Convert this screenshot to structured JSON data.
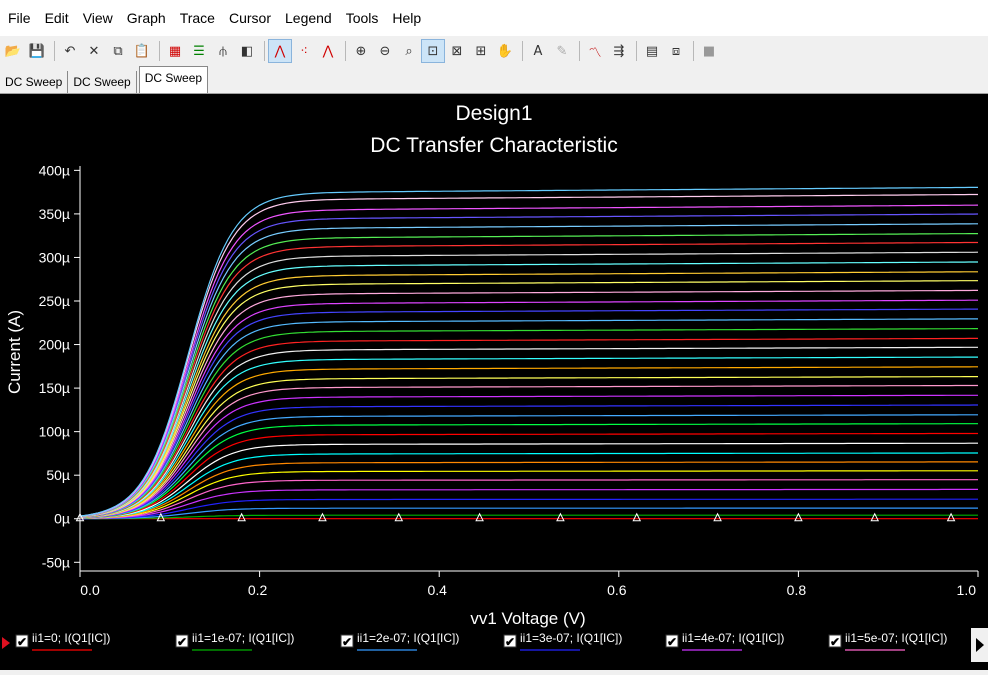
{
  "menu": [
    "File",
    "Edit",
    "View",
    "Graph",
    "Trace",
    "Cursor",
    "Legend",
    "Tools",
    "Help"
  ],
  "toolbar": {
    "icons": [
      {
        "name": "open-icon",
        "glyph": "📂"
      },
      {
        "name": "save-icon",
        "glyph": "💾"
      },
      {
        "sep": true
      },
      {
        "name": "undo-icon",
        "glyph": "↶"
      },
      {
        "name": "cut-icon",
        "glyph": "✕"
      },
      {
        "name": "copy-icon",
        "glyph": "⧉"
      },
      {
        "name": "paste-icon",
        "glyph": "📋"
      },
      {
        "sep": true
      },
      {
        "name": "grid-icon",
        "glyph": "▦",
        "color": "#d00000"
      },
      {
        "name": "legend-icon",
        "glyph": "☰",
        "color": "#008000"
      },
      {
        "name": "cursor-icon",
        "glyph": "⫛"
      },
      {
        "name": "overlay-icon",
        "glyph": "◧"
      },
      {
        "sep": true
      },
      {
        "name": "trace-line-icon",
        "glyph": "⋀",
        "color": "#d00000",
        "selected": true
      },
      {
        "name": "trace-points-icon",
        "glyph": "⁖",
        "color": "#d00000"
      },
      {
        "name": "trace-line-points-icon",
        "glyph": "⋀",
        "color": "#d00000"
      },
      {
        "sep": true
      },
      {
        "name": "zoom-in-icon",
        "glyph": "⊕"
      },
      {
        "name": "zoom-out-icon",
        "glyph": "⊖"
      },
      {
        "name": "zoom-area-icon",
        "glyph": "⌕"
      },
      {
        "name": "zoom-fit-icon",
        "glyph": "⊡",
        "selected": true
      },
      {
        "name": "zoom-x-icon",
        "glyph": "⊠"
      },
      {
        "name": "zoom-y-icon",
        "glyph": "⊞"
      },
      {
        "name": "pan-icon",
        "glyph": "✋"
      },
      {
        "sep": true
      },
      {
        "name": "text-icon",
        "glyph": "A"
      },
      {
        "name": "label-icon",
        "glyph": "✎",
        "color": "#aaaaaa"
      },
      {
        "sep": true
      },
      {
        "name": "trace-measure-icon",
        "glyph": "〽",
        "color": "#c00000"
      },
      {
        "name": "export-icon",
        "glyph": "⇶"
      },
      {
        "sep": true
      },
      {
        "name": "table-icon",
        "glyph": "▤"
      },
      {
        "name": "data-export-icon",
        "glyph": "⧈"
      },
      {
        "sep": true
      },
      {
        "name": "stop-icon",
        "glyph": "■",
        "color": "#999999"
      }
    ]
  },
  "tabs": [
    {
      "label": "DC Sweep",
      "active": false
    },
    {
      "label": "DC Sweep",
      "active": false
    },
    {
      "label": "DC Sweep",
      "active": true
    }
  ],
  "chart_data": {
    "type": "line",
    "title": "Design1",
    "subtitle": "DC Transfer Characteristic",
    "xlabel": "vv1 Voltage (V)",
    "ylabel": "Current (A)",
    "xlim": [
      0,
      1.0
    ],
    "ylim": [
      -60,
      405
    ],
    "x_ticks": [
      "0.0",
      "0.2",
      "0.4",
      "0.6",
      "0.8",
      "1.0"
    ],
    "y_ticks": [
      {
        "value": 400,
        "label": "400µ"
      },
      {
        "value": 350,
        "label": "350µ"
      },
      {
        "value": 300,
        "label": "300µ"
      },
      {
        "value": 250,
        "label": "250µ"
      },
      {
        "value": 200,
        "label": "200µ"
      },
      {
        "value": 150,
        "label": "150µ"
      },
      {
        "value": 100,
        "label": "100µ"
      },
      {
        "value": 50,
        "label": "50µ"
      },
      {
        "value": 0,
        "label": "0µ"
      },
      {
        "value": -50,
        "label": "-50µ"
      }
    ],
    "y_unit_scale": "µA",
    "curve_model": {
      "knee_v": 0.2,
      "shape": "logistic",
      "slope_fraction": 0.02
    },
    "marker_x": [
      0.0,
      0.09,
      0.18,
      0.27,
      0.355,
      0.445,
      0.535,
      0.62,
      0.71,
      0.8,
      0.885,
      0.97
    ],
    "series": [
      {
        "name": "ii1=0; I(Q1[IC])",
        "saturation": 0,
        "color": "#ff0000"
      },
      {
        "name": "ii1=1e-07; I(Q1[IC])",
        "saturation": 4,
        "color": "#00b000"
      },
      {
        "name": "ii1=2e-07; I(Q1[IC])",
        "saturation": 12,
        "color": "#3399ff"
      },
      {
        "name": "ii1=3e-07; I(Q1[IC])",
        "saturation": 22,
        "color": "#2222ff"
      },
      {
        "name": "ii1=4e-07; I(Q1[IC])",
        "saturation": 33,
        "color": "#cc33ff"
      },
      {
        "name": "ii1=5e-07; I(Q1[IC])",
        "saturation": 44,
        "color": "#ff66cc"
      },
      {
        "saturation": 54,
        "color": "#ffff00"
      },
      {
        "saturation": 64,
        "color": "#ff8800"
      },
      {
        "saturation": 74,
        "color": "#00ffff"
      },
      {
        "saturation": 85,
        "color": "#ffffff"
      },
      {
        "saturation": 96,
        "color": "#ff0000"
      },
      {
        "saturation": 107,
        "color": "#00ff44"
      },
      {
        "saturation": 117,
        "color": "#44aaff"
      },
      {
        "saturation": 128,
        "color": "#3333ff"
      },
      {
        "saturation": 139,
        "color": "#cc33ff"
      },
      {
        "saturation": 150,
        "color": "#ff99cc"
      },
      {
        "saturation": 160,
        "color": "#ffff55"
      },
      {
        "saturation": 171,
        "color": "#ffaa00"
      },
      {
        "saturation": 182,
        "color": "#33ffff"
      },
      {
        "saturation": 193,
        "color": "#eeeeee"
      },
      {
        "saturation": 203,
        "color": "#ff2222"
      },
      {
        "saturation": 214,
        "color": "#33dd33"
      },
      {
        "saturation": 225,
        "color": "#55bbff"
      },
      {
        "saturation": 236,
        "color": "#4444ff"
      },
      {
        "saturation": 246,
        "color": "#dd44ff"
      },
      {
        "saturation": 257,
        "color": "#ffaadd"
      },
      {
        "saturation": 268,
        "color": "#ffff66"
      },
      {
        "saturation": 278,
        "color": "#ffcc33"
      },
      {
        "saturation": 289,
        "color": "#66ffff"
      },
      {
        "saturation": 300,
        "color": "#dddddd"
      },
      {
        "saturation": 311,
        "color": "#ff3333"
      },
      {
        "saturation": 321,
        "color": "#55ee55"
      },
      {
        "saturation": 332,
        "color": "#77ccff"
      },
      {
        "saturation": 343,
        "color": "#6655ff"
      },
      {
        "saturation": 353,
        "color": "#ee55ff"
      },
      {
        "saturation": 365,
        "color": "#ffccee"
      },
      {
        "saturation": 373,
        "color": "#66ccff"
      }
    ]
  },
  "legend": [
    {
      "label": "ii1=0; I(Q1[IC])",
      "color": "#ff0000",
      "checked": true
    },
    {
      "label": "ii1=1e-07; I(Q1[IC])",
      "color": "#00b000",
      "checked": true
    },
    {
      "label": "ii1=2e-07; I(Q1[IC])",
      "color": "#3399ff",
      "checked": true
    },
    {
      "label": "ii1=3e-07; I(Q1[IC])",
      "color": "#2222ff",
      "checked": true
    },
    {
      "label": "ii1=4e-07; I(Q1[IC])",
      "color": "#cc33ff",
      "checked": true
    },
    {
      "label": "ii1=5e-07; I(Q1[IC])",
      "color": "#ff66cc",
      "checked": true
    }
  ]
}
